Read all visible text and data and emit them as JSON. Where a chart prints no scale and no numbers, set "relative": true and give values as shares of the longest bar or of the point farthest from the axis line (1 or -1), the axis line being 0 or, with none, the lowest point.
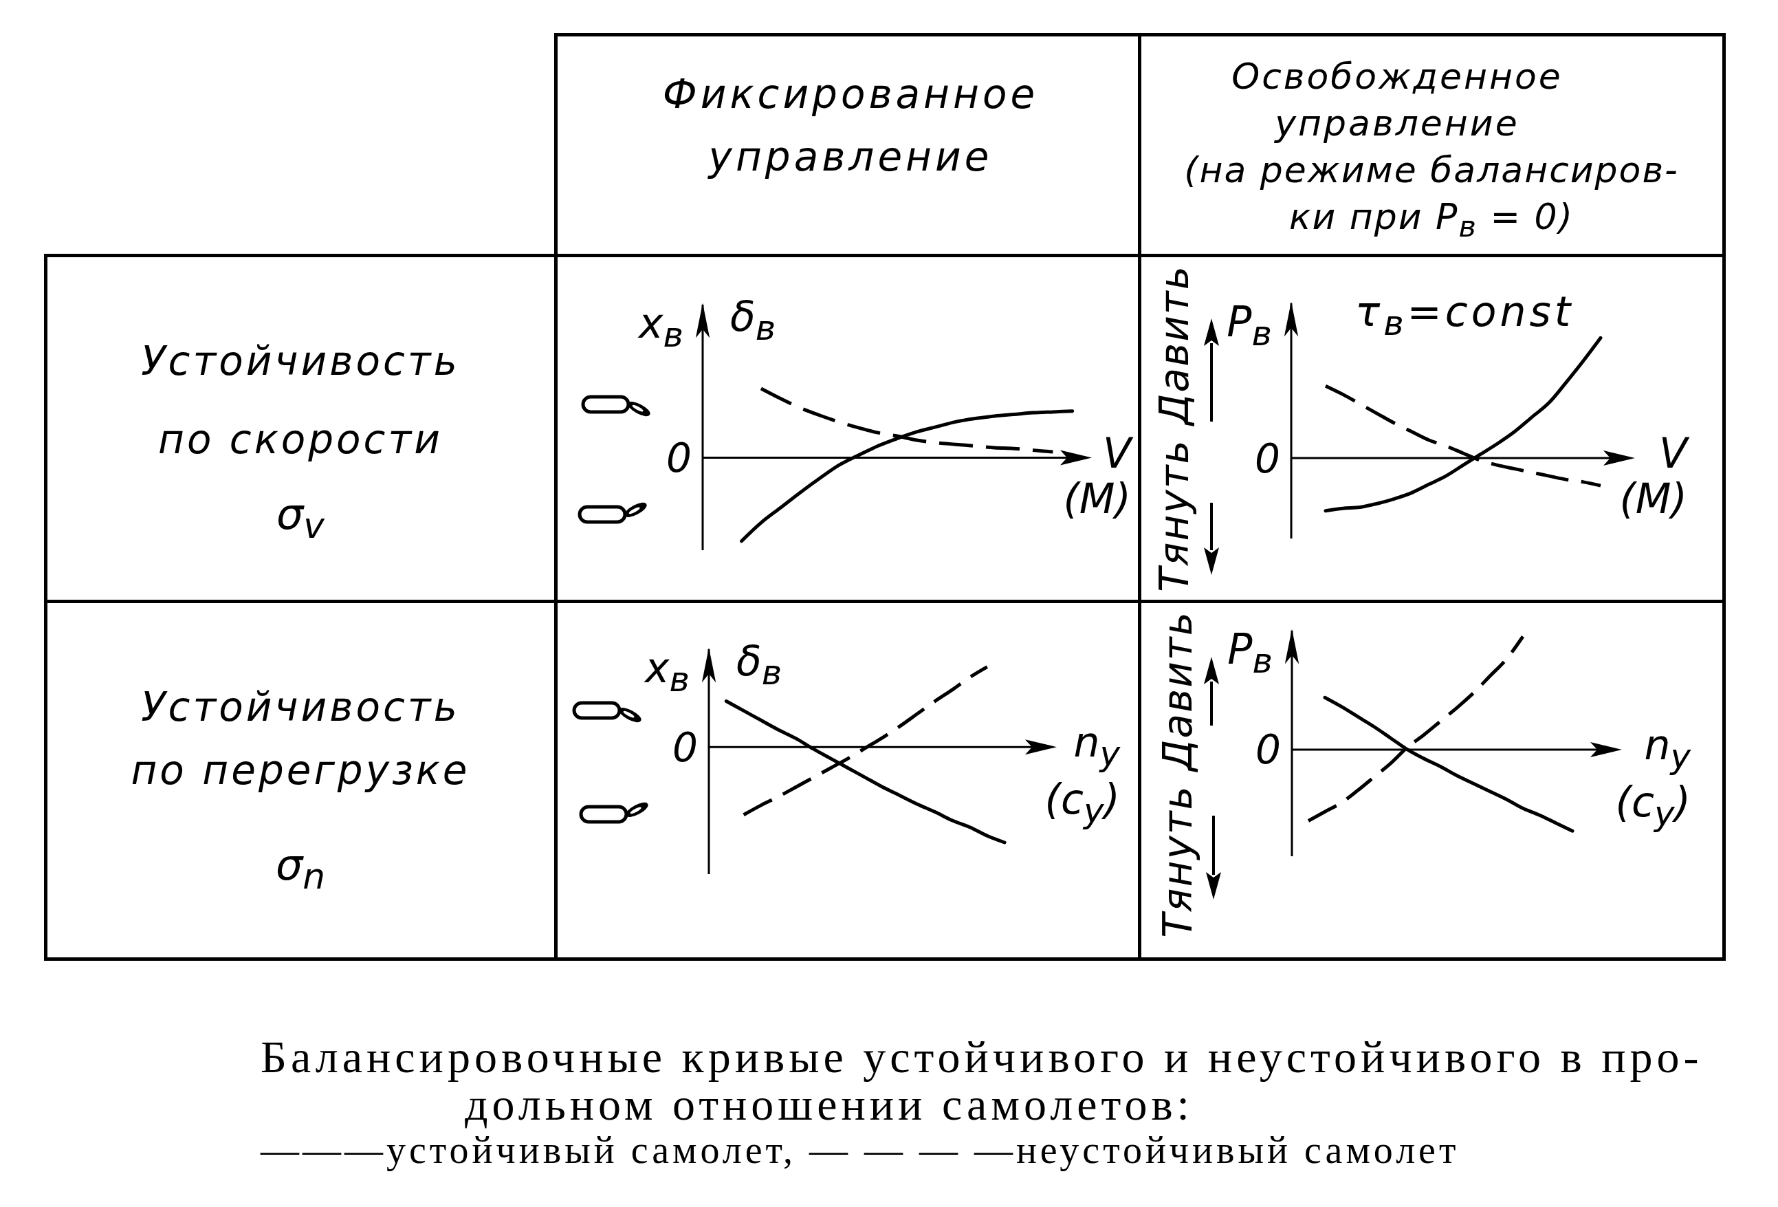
{
  "chart_data": [
    {
      "type": "other",
      "title": "Фиксированное управление"
    },
    {
      "type": "other",
      "title": "Освобожденное управление",
      "subtitle": "(на режиме балансиров-ки при P$_{в}$ = 0)"
    },
    {
      "type": "other",
      "title": "Устойчивость по скорости",
      "subtitle": "σ$_{v}$"
    },
    {
      "type": "line",
      "relative": true,
      "marker": "none",
      "categories": [
        null,
        null,
        null,
        null,
        null,
        null,
        null,
        null,
        null,
        null,
        null,
        null,
        null,
        null,
        null,
        null,
        null,
        null,
        null,
        null,
        null
      ],
      "ylabel": "x$_{в}$ δ$_{в}$",
      "xlabel": "V\n(M)",
      "ref_lines": [
        {
          "axis": "y",
          "value": 0,
          "label": "0"
        }
      ],
      "series": [
        {
          "color": "#000000",
          "line_style": "solid",
          "values": [
            null,
            null,
            -1,
            -0.78,
            -0.6,
            -0.42,
            -0.25,
            -0.09,
            0.03,
            0.14,
            0.23,
            0.31,
            0.37,
            0.43,
            0.47,
            0.5,
            0.52,
            0.54,
            0.55,
            0.56,
            null
          ]
        },
        {
          "color": "#000000",
          "line_style": "dashed",
          "values": [
            null,
            null,
            null,
            0.83,
            0.71,
            0.6,
            0.51,
            0.43,
            0.36,
            0.3,
            0.26,
            0.21,
            0.18,
            0.16,
            0.14,
            0.12,
            0.11,
            0.09,
            0.07,
            null,
            null
          ]
        }
      ]
    },
    {
      "type": "line",
      "relative": true,
      "marker": "none",
      "categories": [
        null,
        null,
        null,
        null,
        null,
        null,
        null,
        null,
        null,
        null,
        null,
        null,
        null,
        null,
        null,
        null,
        null,
        null,
        null,
        null,
        null
      ],
      "ylabel": "P$_{в}$",
      "xlabel": "V\n(M)",
      "annotations": [
        "Тянуть Давить",
        "τ$_{в}$=const"
      ],
      "ref_lines": [
        {
          "axis": "y",
          "value": 0,
          "label": "0"
        }
      ],
      "series": [
        {
          "color": "#000000",
          "line_style": "solid",
          "values": [
            null,
            null,
            -0.44,
            -0.42,
            -0.41,
            -0.38,
            -0.34,
            -0.29,
            -0.22,
            -0.15,
            -0.06,
            0.03,
            0.12,
            0.22,
            0.34,
            0.46,
            0.63,
            0.81,
            1,
            null,
            null
          ]
        },
        {
          "color": "#000000",
          "line_style": "dashed",
          "values": [
            null,
            null,
            0.6,
            0.53,
            0.45,
            0.37,
            0.29,
            0.22,
            0.15,
            0.1,
            0.04,
            -0.02,
            -0.06,
            -0.09,
            -0.12,
            -0.15,
            -0.18,
            -0.2,
            -0.23,
            null,
            null
          ]
        }
      ]
    },
    {
      "type": "other",
      "title": "Устойчивость по перегрузке",
      "subtitle": "σ$_{n}$"
    },
    {
      "type": "line",
      "relative": true,
      "marker": "none",
      "categories": [
        null,
        null,
        null,
        null,
        null,
        null,
        null,
        null,
        null,
        null,
        null,
        null,
        null,
        null,
        null,
        null,
        null,
        null,
        null,
        null,
        null
      ],
      "ylabel": "x$_{в}$ δ$_{в}$",
      "xlabel": "n$_{y}$\n(c$_{y}$)",
      "ref_lines": [
        {
          "axis": "y",
          "value": 0,
          "label": "0"
        }
      ],
      "series": [
        {
          "color": "#000000",
          "line_style": "solid",
          "values": [
            null,
            0.48,
            0.38,
            0.28,
            0.18,
            0.09,
            -0.02,
            -0.12,
            -0.22,
            -0.32,
            -0.42,
            -0.51,
            -0.6,
            -0.68,
            -0.77,
            -0.84,
            -0.93,
            -1,
            null,
            null,
            null
          ]
        },
        {
          "color": "#000000",
          "line_style": "dashed",
          "values": [
            null,
            null,
            -0.71,
            -0.61,
            -0.52,
            -0.42,
            -0.32,
            -0.22,
            -0.12,
            -0.01,
            0.1,
            0.22,
            0.35,
            0.48,
            0.6,
            0.73,
            0.84,
            null,
            null,
            null,
            null
          ]
        }
      ]
    },
    {
      "type": "line",
      "relative": true,
      "marker": "none",
      "categories": [
        null,
        null,
        null,
        null,
        null,
        null,
        null,
        null,
        null,
        null,
        null,
        null,
        null,
        null,
        null,
        null,
        null,
        null,
        null,
        null,
        null
      ],
      "ylabel": "P$_{в}$",
      "xlabel": "n$_{y}$\n(c$_{y}$)",
      "annotations": [
        "Тянуть Давить"
      ],
      "ref_lines": [
        {
          "axis": "y",
          "value": 0,
          "label": "0"
        }
      ],
      "series": [
        {
          "color": "#000000",
          "line_style": "solid",
          "values": [
            null,
            null,
            0.46,
            0.38,
            0.29,
            0.2,
            0.1,
            0,
            -0.08,
            -0.15,
            -0.23,
            -0.3,
            -0.37,
            -0.44,
            -0.52,
            -0.58,
            -0.65,
            -0.72,
            null,
            null,
            null
          ]
        },
        {
          "color": "#000000",
          "line_style": "dashed",
          "values": [
            null,
            -0.63,
            -0.55,
            -0.47,
            -0.36,
            -0.24,
            -0.12,
            0.02,
            0.13,
            0.25,
            0.37,
            0.5,
            0.65,
            0.8,
            1,
            null,
            null,
            null,
            null,
            null,
            null
          ]
        }
      ]
    },
    {
      "type": "other",
      "annotations": [
        "Балансировочные кривые устойчивого и неустойчивого в про-дольном отношении самолетов:",
        "———устойчивый самолет, — — — —неустойчивый самолет"
      ]
    }
  ]
}
